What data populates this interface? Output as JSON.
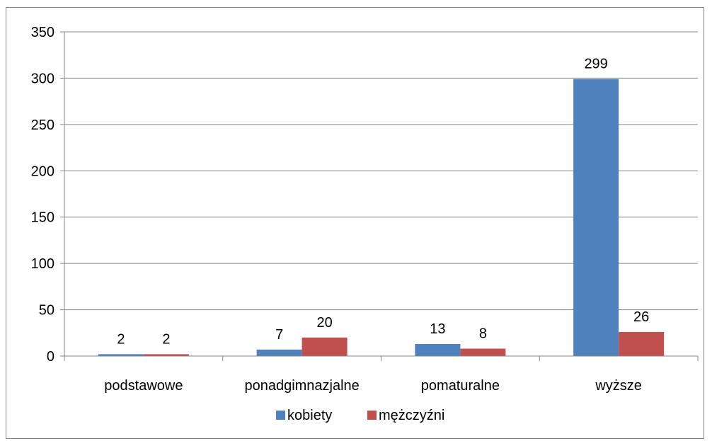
{
  "chart_data": {
    "type": "bar",
    "categories": [
      "podstawowe",
      "ponadgimnazjalne",
      "pomaturalne",
      "wyższe"
    ],
    "series": [
      {
        "name": "kobiety",
        "values": [
          2,
          7,
          13,
          299
        ],
        "color": "#4F81BD"
      },
      {
        "name": "mężczyźni",
        "values": [
          2,
          20,
          8,
          26
        ],
        "color": "#C0504D"
      }
    ],
    "ylim": [
      0,
      350
    ],
    "yticks": [
      0,
      50,
      100,
      150,
      200,
      250,
      300,
      350
    ],
    "grid": true,
    "legend_position": "bottom",
    "data_labels": true
  }
}
